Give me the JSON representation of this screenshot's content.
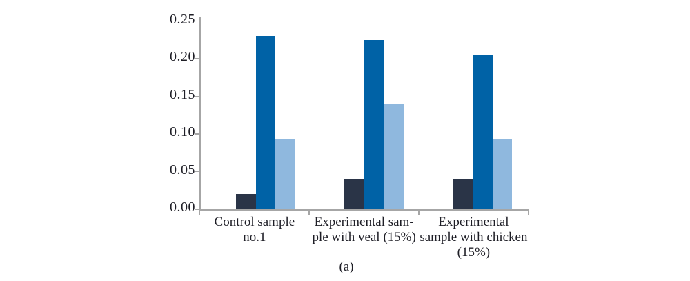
{
  "chart_data": {
    "type": "bar",
    "title": "",
    "xlabel": "",
    "ylabel": "",
    "caption": "(a)",
    "categories": [
      "Control sample no.1",
      "Experimental sample with veal (15%)",
      "Experimental sample with chicken (15%)"
    ],
    "category_label_lines": [
      [
        "Control sample",
        "no.1"
      ],
      [
        "Experimental sam-",
        "ple with veal (15%)"
      ],
      [
        "Experimental",
        "sample with chicken",
        "(15%)"
      ]
    ],
    "series": [
      {
        "name": "dark-navy-series",
        "color": "#2a3447",
        "values": [
          0.02,
          0.04,
          0.04
        ]
      },
      {
        "name": "medium-blue-series",
        "color": "#0062a6",
        "values": [
          0.23,
          0.225,
          0.205
        ]
      },
      {
        "name": "light-blue-series",
        "color": "#8fb8de",
        "values": [
          0.093,
          0.139,
          0.094
        ]
      }
    ],
    "ylim": [
      0,
      0.25
    ],
    "ytick_step": 0.05,
    "ytick_labels": [
      "0.00",
      "0.05",
      "0.10",
      "0.15",
      "0.20",
      "0.25"
    ],
    "grid": "off",
    "legend": "none",
    "axis_color": "#a6a6a6"
  }
}
